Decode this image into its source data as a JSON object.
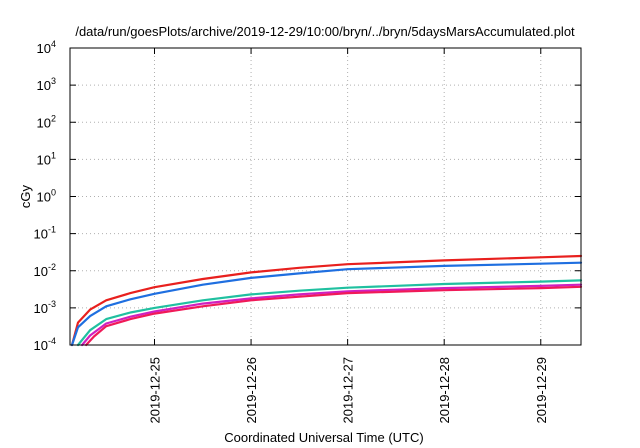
{
  "chart_data": {
    "type": "line",
    "title": "/data/run/goesPlots/archive/2019-12-29/10:00/bryn/../bryn/5daysMarsAccumulated.plot",
    "xlabel": "Coordinated Universal Time (UTC)",
    "ylabel": "cGy",
    "y_scale": "log",
    "ylim": [
      0.0001,
      10000
    ],
    "y_ticks": [
      {
        "base": "10",
        "exp": "4",
        "value": 10000
      },
      {
        "base": "10",
        "exp": "3",
        "value": 1000
      },
      {
        "base": "10",
        "exp": "2",
        "value": 100
      },
      {
        "base": "10",
        "exp": "1",
        "value": 10
      },
      {
        "base": "10",
        "exp": "0",
        "value": 1
      },
      {
        "base": "10",
        "exp": "-1",
        "value": 0.1
      },
      {
        "base": "10",
        "exp": "-2",
        "value": 0.01
      },
      {
        "base": "10",
        "exp": "-3",
        "value": 0.001
      },
      {
        "base": "10",
        "exp": "-4",
        "value": 0.0001
      }
    ],
    "xlim": [
      "2019-12-24 03:00",
      "2019-12-29 10:00"
    ],
    "x_ticks": [
      "2019-12-25",
      "2019-12-26",
      "2019-12-27",
      "2019-12-28",
      "2019-12-29"
    ],
    "grid": true,
    "series": [
      {
        "color": "#e8201e",
        "x": [
          "2019-12-24 03:30",
          "2019-12-24 05:00",
          "2019-12-24 08:00",
          "2019-12-24 12:00",
          "2019-12-24 18:00",
          "2019-12-25 00:00",
          "2019-12-25 12:00",
          "2019-12-26 00:00",
          "2019-12-26 12:00",
          "2019-12-27 00:00",
          "2019-12-28 00:00",
          "2019-12-29 00:00",
          "2019-12-29 10:00"
        ],
        "y": [
          0.0001,
          0.0004,
          0.0009,
          0.0016,
          0.0025,
          0.0036,
          0.006,
          0.009,
          0.012,
          0.015,
          0.019,
          0.023,
          0.025
        ]
      },
      {
        "color": "#1f6fe0",
        "x": [
          "2019-12-24 03:30",
          "2019-12-24 05:00",
          "2019-12-24 08:00",
          "2019-12-24 12:00",
          "2019-12-24 18:00",
          "2019-12-25 00:00",
          "2019-12-25 12:00",
          "2019-12-26 00:00",
          "2019-12-26 12:00",
          "2019-12-27 00:00",
          "2019-12-28 00:00",
          "2019-12-29 00:00",
          "2019-12-29 10:00"
        ],
        "y": [
          0.0001,
          0.0003,
          0.0006,
          0.0011,
          0.0017,
          0.0024,
          0.0042,
          0.0064,
          0.0085,
          0.011,
          0.0135,
          0.0155,
          0.0165
        ]
      },
      {
        "color": "#20c0a0",
        "x": [
          "2019-12-24 05:00",
          "2019-12-24 08:00",
          "2019-12-24 12:00",
          "2019-12-24 18:00",
          "2019-12-25 00:00",
          "2019-12-25 12:00",
          "2019-12-26 00:00",
          "2019-12-26 12:00",
          "2019-12-27 00:00",
          "2019-12-28 00:00",
          "2019-12-29 00:00",
          "2019-12-29 10:00"
        ],
        "y": [
          0.0001,
          0.00025,
          0.0005,
          0.00075,
          0.001,
          0.0016,
          0.0023,
          0.0029,
          0.0035,
          0.0044,
          0.0051,
          0.0055
        ]
      },
      {
        "color": "#d020c0",
        "x": [
          "2019-12-24 06:00",
          "2019-12-24 08:00",
          "2019-12-24 12:00",
          "2019-12-24 18:00",
          "2019-12-25 00:00",
          "2019-12-25 12:00",
          "2019-12-26 00:00",
          "2019-12-26 12:00",
          "2019-12-27 00:00",
          "2019-12-28 00:00",
          "2019-12-29 00:00",
          "2019-12-29 10:00"
        ],
        "y": [
          0.0001,
          0.00018,
          0.00038,
          0.00058,
          0.0008,
          0.0013,
          0.0018,
          0.0023,
          0.0028,
          0.0034,
          0.0039,
          0.0042
        ]
      },
      {
        "color": "#f01a58",
        "x": [
          "2019-12-24 07:00",
          "2019-12-24 09:00",
          "2019-12-24 12:00",
          "2019-12-24 18:00",
          "2019-12-25 00:00",
          "2019-12-25 12:00",
          "2019-12-26 00:00",
          "2019-12-26 12:00",
          "2019-12-27 00:00",
          "2019-12-28 00:00",
          "2019-12-29 00:00",
          "2019-12-29 10:00"
        ],
        "y": [
          0.0001,
          0.00017,
          0.00032,
          0.0005,
          0.0007,
          0.0011,
          0.0016,
          0.002,
          0.0025,
          0.003,
          0.0034,
          0.0037
        ]
      }
    ]
  }
}
